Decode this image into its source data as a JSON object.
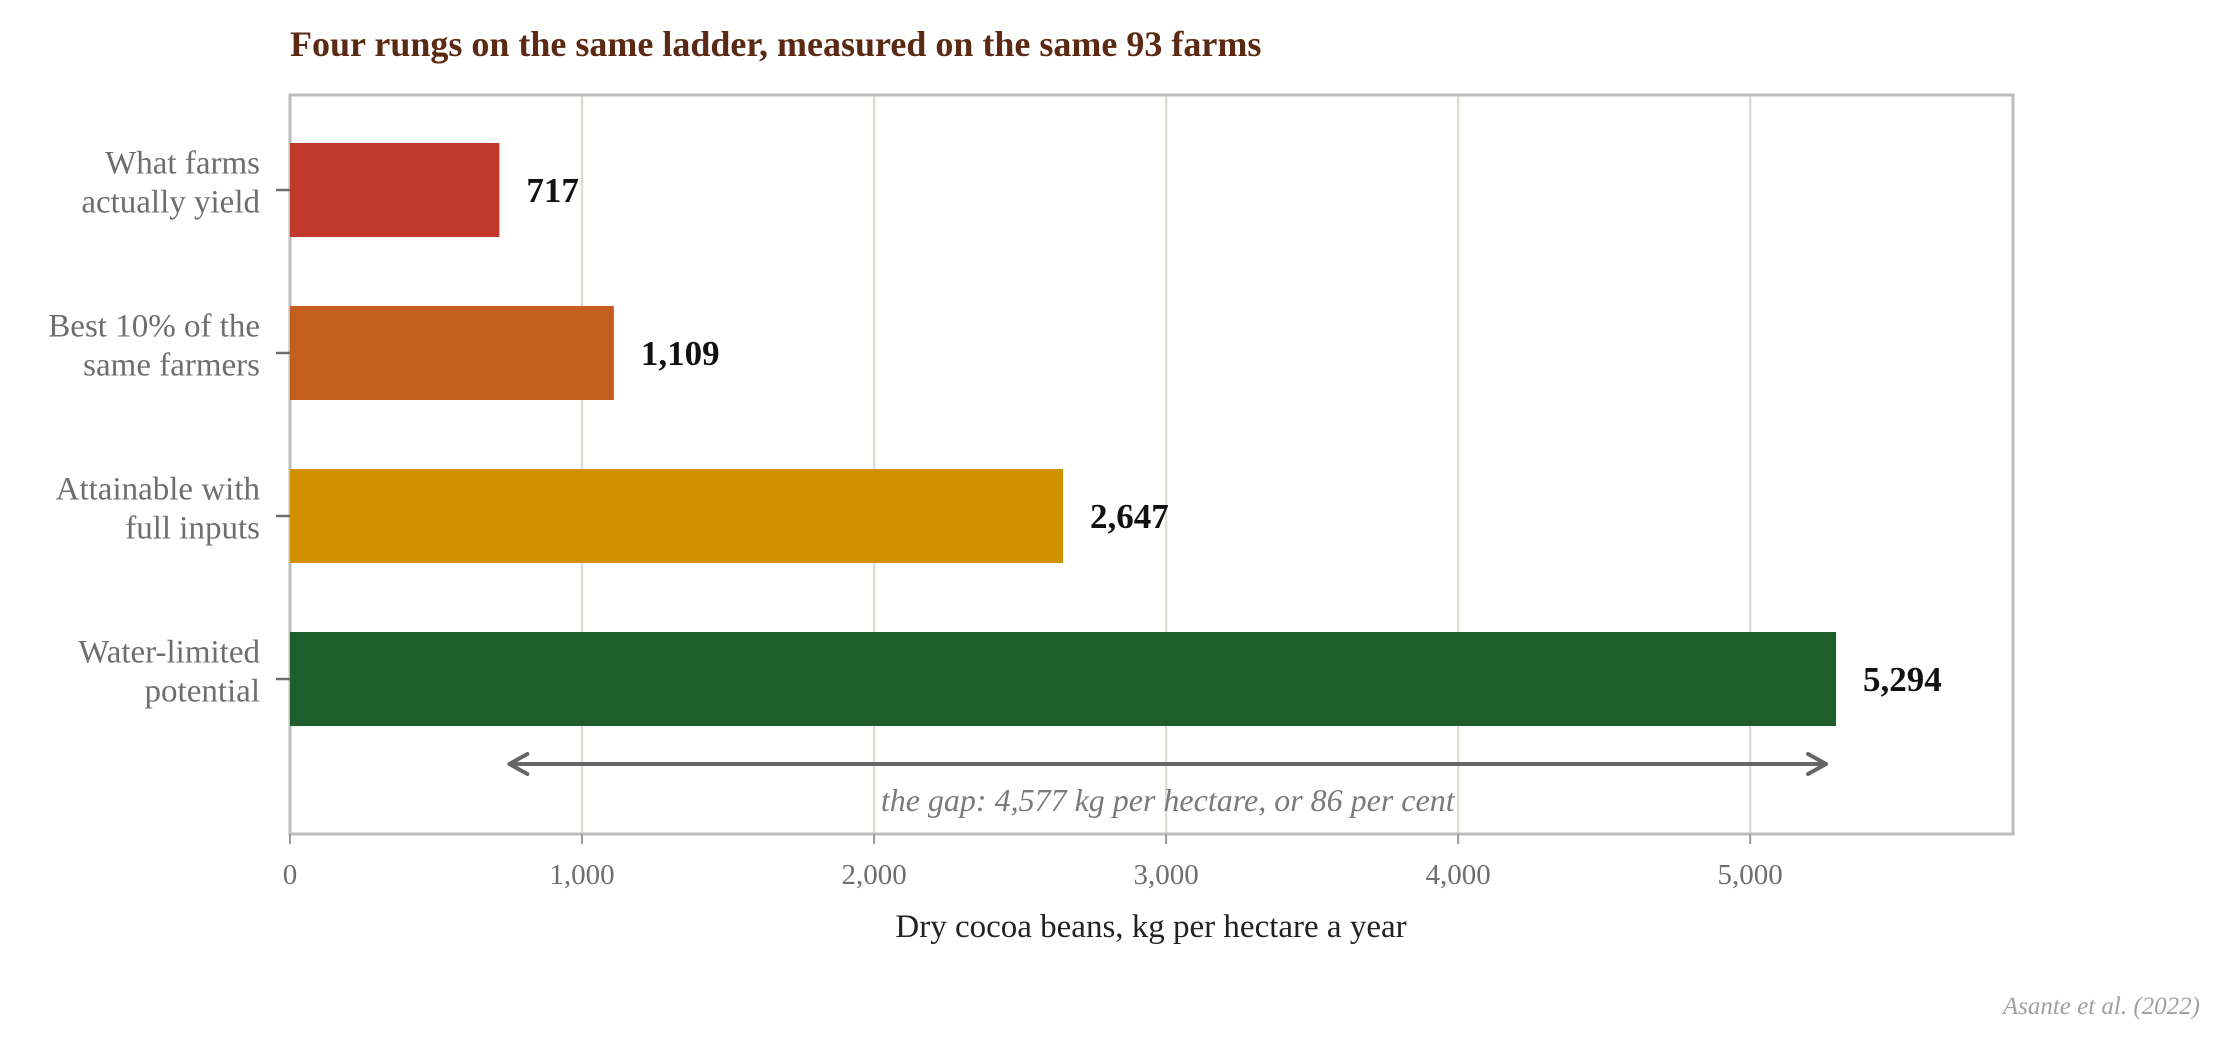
{
  "chart_data": {
    "type": "bar",
    "orientation": "horizontal",
    "title": "Four rungs on the same ladder, measured on the same 93 farms",
    "categories": [
      [
        "What farms",
        "actually yield"
      ],
      [
        "Best 10% of the",
        "same farmers"
      ],
      [
        "Attainable with",
        "full inputs"
      ],
      [
        "Water-limited",
        "potential"
      ]
    ],
    "values": [
      717,
      1109,
      2647,
      5294
    ],
    "value_labels": [
      "717",
      "1,109",
      "2,647",
      "5,294"
    ],
    "colors": [
      "#c0392b",
      "#c45e20",
      "#d19000",
      "#1f5e2b"
    ],
    "xlabel": "Dry cocoa beans, kg per hectare a year",
    "ylabel": "",
    "xlim": [
      0,
      5900
    ],
    "x_ticks": [
      0,
      1000,
      2000,
      3000,
      4000,
      5000
    ],
    "x_tick_labels": [
      "0",
      "1,000",
      "2,000",
      "3,000",
      "4,000",
      "5,000"
    ],
    "grid": "vertical",
    "annotation": {
      "text": "the gap: 4,577 kg per hectare, or 86 per cent",
      "arrow_from": 717,
      "arrow_to": 5294
    },
    "source": "Asante et al. (2022)"
  }
}
